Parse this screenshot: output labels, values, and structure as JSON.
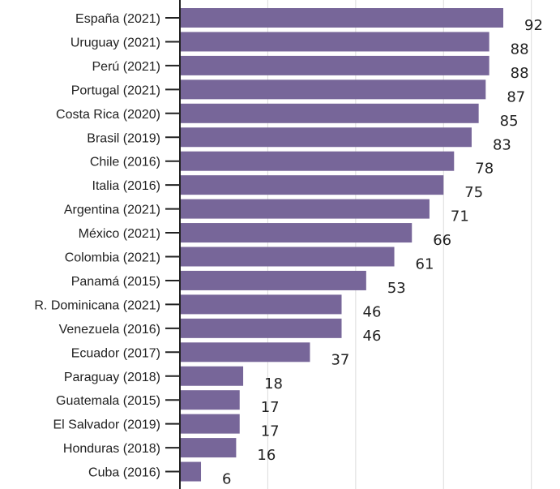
{
  "colors": {
    "bar": "#776699",
    "grid": "#dcdcdc",
    "axis": "#222222",
    "text": "#222222"
  },
  "chart_data": {
    "type": "bar",
    "orientation": "horizontal",
    "categories": [
      "España (2021)",
      "Uruguay (2021)",
      "Perú (2021)",
      "Portugal (2021)",
      "Costa Rica (2020)",
      "Brasil (2019)",
      "Chile (2016)",
      "Italia (2016)",
      "Argentina (2021)",
      "México (2021)",
      "Colombia (2021)",
      "Panamá (2015)",
      "R. Dominicana (2021)",
      "Venezuela (2016)",
      "Ecuador (2017)",
      "Paraguay (2018)",
      "Guatemala (2015)",
      "El Salvador (2019)",
      "Honduras (2018)",
      "Cuba (2016)"
    ],
    "values": [
      92,
      88,
      88,
      87,
      85,
      83,
      78,
      75,
      71,
      66,
      61,
      53,
      46,
      46,
      37,
      18,
      17,
      17,
      16,
      6
    ],
    "xlim": [
      0,
      100
    ],
    "grid": true,
    "data_labels": true
  }
}
